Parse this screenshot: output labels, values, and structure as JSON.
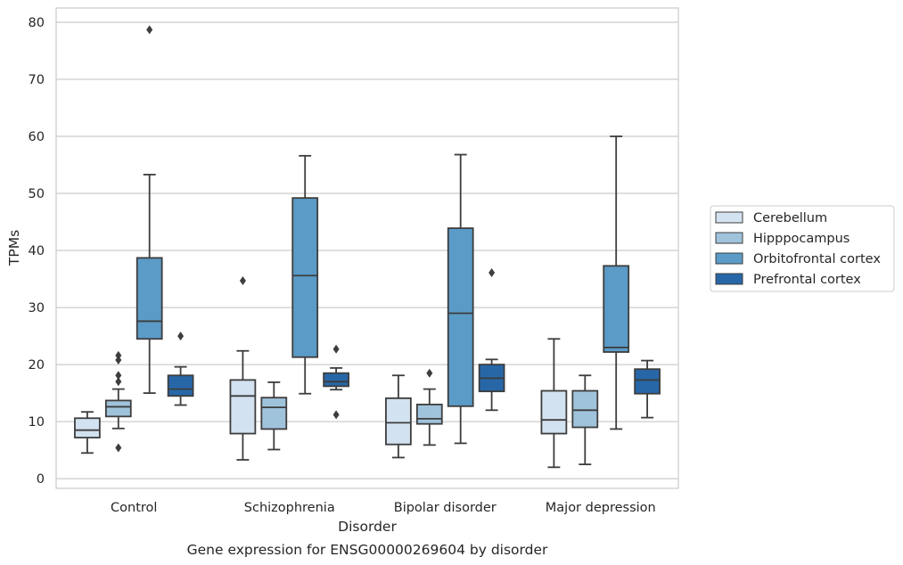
{
  "chart_data": {
    "type": "box",
    "caption": "Gene expression for ENSG00000269604 by disorder",
    "xlabel": "Disorder",
    "ylabel": "TPMs",
    "ylim": [
      -1.7,
      82.5
    ],
    "yticks": [
      0,
      10,
      20,
      30,
      40,
      50,
      60,
      70,
      80
    ],
    "grid": true,
    "legend_position": "right",
    "categories": [
      "Control",
      "Schizophrenia",
      "Bipolar disorder",
      "Major depression"
    ],
    "series": [
      {
        "name": "Cerebellum",
        "color": "#d2e2f0",
        "boxes": [
          {
            "whislo": 4.5,
            "q1": 7.2,
            "med": 8.5,
            "q3": 10.6,
            "whishi": 11.7,
            "fliers": []
          },
          {
            "whislo": 3.3,
            "q1": 7.9,
            "med": 14.5,
            "q3": 17.3,
            "whishi": 22.4,
            "fliers": [
              34.7
            ]
          },
          {
            "whislo": 3.7,
            "q1": 6.0,
            "med": 9.8,
            "q3": 14.1,
            "whishi": 18.1,
            "fliers": []
          },
          {
            "whislo": 2.0,
            "q1": 7.9,
            "med": 10.3,
            "q3": 15.4,
            "whishi": 24.5,
            "fliers": []
          }
        ]
      },
      {
        "name": "Hipppocampus",
        "color": "#a0c3dc",
        "boxes": [
          {
            "whislo": 8.8,
            "q1": 10.9,
            "med": 12.6,
            "q3": 13.7,
            "whishi": 15.7,
            "fliers": [
              21.6,
              18.1,
              17.0,
              20.8,
              5.4
            ]
          },
          {
            "whislo": 5.1,
            "q1": 8.7,
            "med": 12.5,
            "q3": 14.2,
            "whishi": 16.9,
            "fliers": []
          },
          {
            "whislo": 5.9,
            "q1": 9.6,
            "med": 10.5,
            "q3": 13.0,
            "whishi": 15.7,
            "fliers": [
              18.5
            ]
          },
          {
            "whislo": 2.5,
            "q1": 9.0,
            "med": 12.0,
            "q3": 15.4,
            "whishi": 18.1,
            "fliers": []
          }
        ]
      },
      {
        "name": "Orbitofrontal cortex",
        "color": "#5b9bc7",
        "boxes": [
          {
            "whislo": 15.0,
            "q1": 24.5,
            "med": 27.6,
            "q3": 38.7,
            "whishi": 53.3,
            "fliers": [
              78.7
            ]
          },
          {
            "whislo": 14.9,
            "q1": 21.3,
            "med": 35.6,
            "q3": 49.2,
            "whishi": 56.6,
            "fliers": []
          },
          {
            "whislo": 6.2,
            "q1": 12.7,
            "med": 29.0,
            "q3": 43.9,
            "whishi": 56.8,
            "fliers": []
          },
          {
            "whislo": 8.7,
            "q1": 22.2,
            "med": 23.0,
            "q3": 37.3,
            "whishi": 60.0,
            "fliers": []
          }
        ]
      },
      {
        "name": "Prefrontal cortex",
        "color": "#2767a8",
        "boxes": [
          {
            "whislo": 12.9,
            "q1": 14.5,
            "med": 15.7,
            "q3": 18.1,
            "whishi": 19.6,
            "fliers": [
              25.0
            ]
          },
          {
            "whislo": 15.6,
            "q1": 16.2,
            "med": 17.0,
            "q3": 18.5,
            "whishi": 19.4,
            "fliers": [
              22.7,
              11.2
            ]
          },
          {
            "whislo": 12.0,
            "q1": 15.3,
            "med": 17.6,
            "q3": 20.0,
            "whishi": 20.9,
            "fliers": [
              36.1
            ]
          },
          {
            "whislo": 10.7,
            "q1": 14.9,
            "med": 17.3,
            "q3": 19.2,
            "whishi": 20.7,
            "fliers": []
          }
        ]
      }
    ]
  }
}
